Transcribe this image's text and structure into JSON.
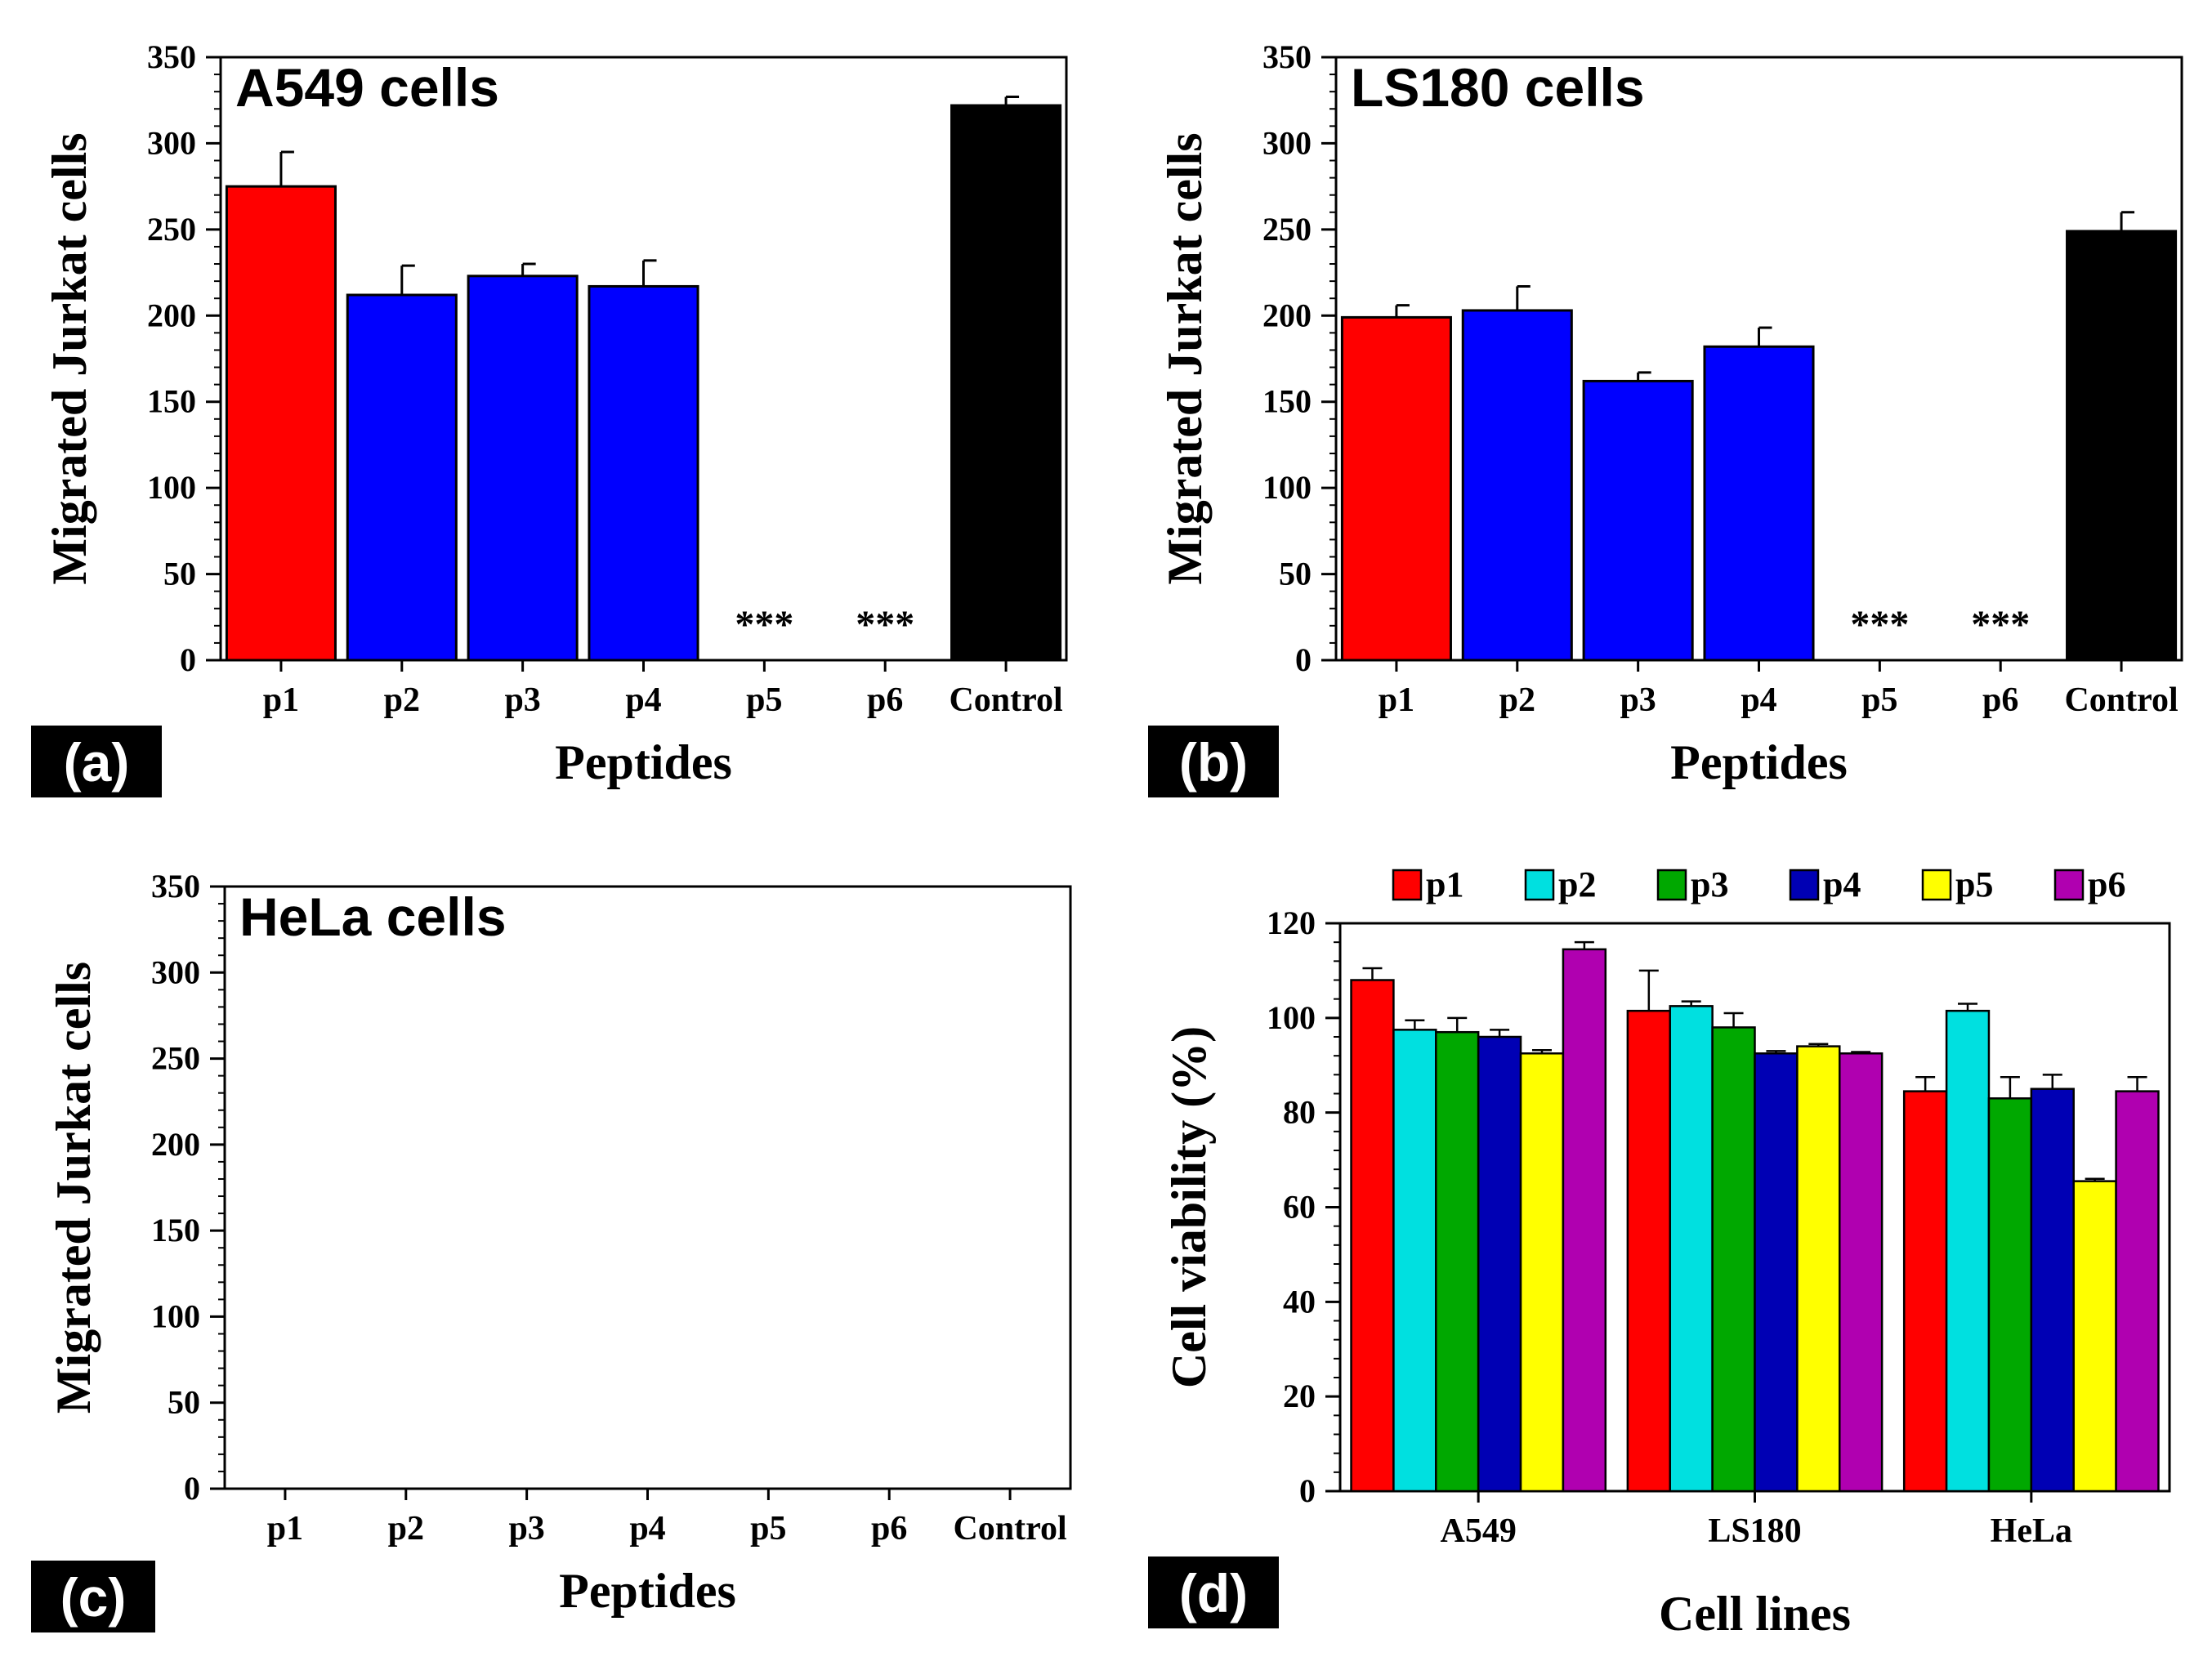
{
  "chart_data": [
    {
      "panel": "a",
      "type": "bar",
      "title": "A549 cells",
      "xlabel": "Peptides",
      "ylabel": "Migrated Jurkat cells",
      "categories": [
        "p1",
        "p2",
        "p3",
        "p4",
        "p5",
        "p6",
        "Control"
      ],
      "values": [
        275,
        212,
        223,
        217,
        0,
        0,
        322
      ],
      "errors": [
        20,
        17,
        7,
        15,
        0,
        0,
        5
      ],
      "colors": [
        "#ff0000",
        "#0000ff",
        "#0000ff",
        "#0000ff",
        "#0000ff",
        "#0000ff",
        "#000000"
      ],
      "annotations": [
        "",
        "",
        "",
        "",
        "***",
        "***",
        ""
      ],
      "ylim": [
        0,
        350
      ],
      "yticks": [
        0,
        50,
        100,
        150,
        200,
        250,
        300,
        350
      ],
      "ytick_labels": [
        "0",
        "50",
        "100",
        "150",
        "200",
        "250",
        "300",
        "350"
      ]
    },
    {
      "panel": "b",
      "type": "bar",
      "title": "LS180 cells",
      "xlabel": "Peptides",
      "ylabel": "Migrated Jurkat cells",
      "categories": [
        "p1",
        "p2",
        "p3",
        "p4",
        "p5",
        "p6",
        "Control"
      ],
      "values": [
        199,
        203,
        162,
        182,
        0,
        0,
        249
      ],
      "errors": [
        7,
        14,
        5,
        11,
        0,
        0,
        11
      ],
      "colors": [
        "#ff0000",
        "#0000ff",
        "#0000ff",
        "#0000ff",
        "#0000ff",
        "#0000ff",
        "#000000"
      ],
      "annotations": [
        "",
        "",
        "",
        "",
        "***",
        "***",
        ""
      ],
      "ylim": [
        0,
        350
      ],
      "yticks": [
        0,
        50,
        100,
        150,
        200,
        250,
        300,
        350
      ],
      "ytick_labels": [
        "0",
        "50",
        "100",
        "150",
        "200",
        "250",
        "300",
        "350"
      ]
    },
    {
      "panel": "c",
      "type": "bar",
      "title": "HeLa cells",
      "xlabel": "Peptides",
      "ylabel": "Migrated Jurkat cells",
      "categories": [
        "p1",
        "p2",
        "p3",
        "p4",
        "p5",
        "p6",
        "Control"
      ],
      "values": [
        0,
        0,
        0,
        0,
        0,
        0,
        0
      ],
      "errors": [
        0,
        0,
        0,
        0,
        0,
        0,
        0
      ],
      "colors": [
        "#ff0000",
        "#0000ff",
        "#0000ff",
        "#0000ff",
        "#0000ff",
        "#0000ff",
        "#000000"
      ],
      "annotations": [
        "",
        "",
        "",
        "",
        "",
        "",
        ""
      ],
      "ylim": [
        0,
        350
      ],
      "yticks": [
        0,
        50,
        100,
        150,
        200,
        250,
        300,
        350
      ],
      "ytick_labels": [
        "0",
        "50",
        "100",
        "150",
        "200",
        "250",
        "300",
        "350"
      ]
    },
    {
      "panel": "d",
      "type": "bar",
      "title": "",
      "xlabel": "Cell lines",
      "ylabel": "Cell viability (%)",
      "categories": [
        "A549",
        "LS180",
        "HeLa"
      ],
      "series": [
        {
          "name": "p1",
          "color": "#ff0000",
          "values": [
            108,
            101.5,
            84.5
          ],
          "errors": [
            2.5,
            8.5,
            3
          ]
        },
        {
          "name": "p2",
          "color": "#00e0e0",
          "values": [
            97.5,
            102.5,
            101.5
          ],
          "errors": [
            2,
            1,
            1.5
          ]
        },
        {
          "name": "p3",
          "color": "#00a800",
          "values": [
            97,
            98,
            83
          ],
          "errors": [
            3,
            3,
            4.5
          ]
        },
        {
          "name": "p4",
          "color": "#0000b4",
          "values": [
            96,
            92.5,
            85
          ],
          "errors": [
            1.5,
            0.5,
            3
          ]
        },
        {
          "name": "p5",
          "color": "#ffff00",
          "values": [
            92.5,
            94,
            65.5
          ],
          "errors": [
            0.7,
            0.5,
            0.5
          ]
        },
        {
          "name": "p6",
          "color": "#b000b0",
          "values": [
            114.5,
            92.5,
            84.5
          ],
          "errors": [
            1.5,
            0.3,
            3
          ]
        }
      ],
      "ylim": [
        0,
        120
      ],
      "yticks": [
        0,
        20,
        40,
        60,
        80,
        100,
        120
      ],
      "ytick_labels": [
        "0",
        "20",
        "40",
        "60",
        "80",
        "100",
        "120"
      ],
      "legend": "top"
    }
  ],
  "panel_labels": [
    "(a)",
    "(b)",
    "(c)",
    "(d)"
  ]
}
